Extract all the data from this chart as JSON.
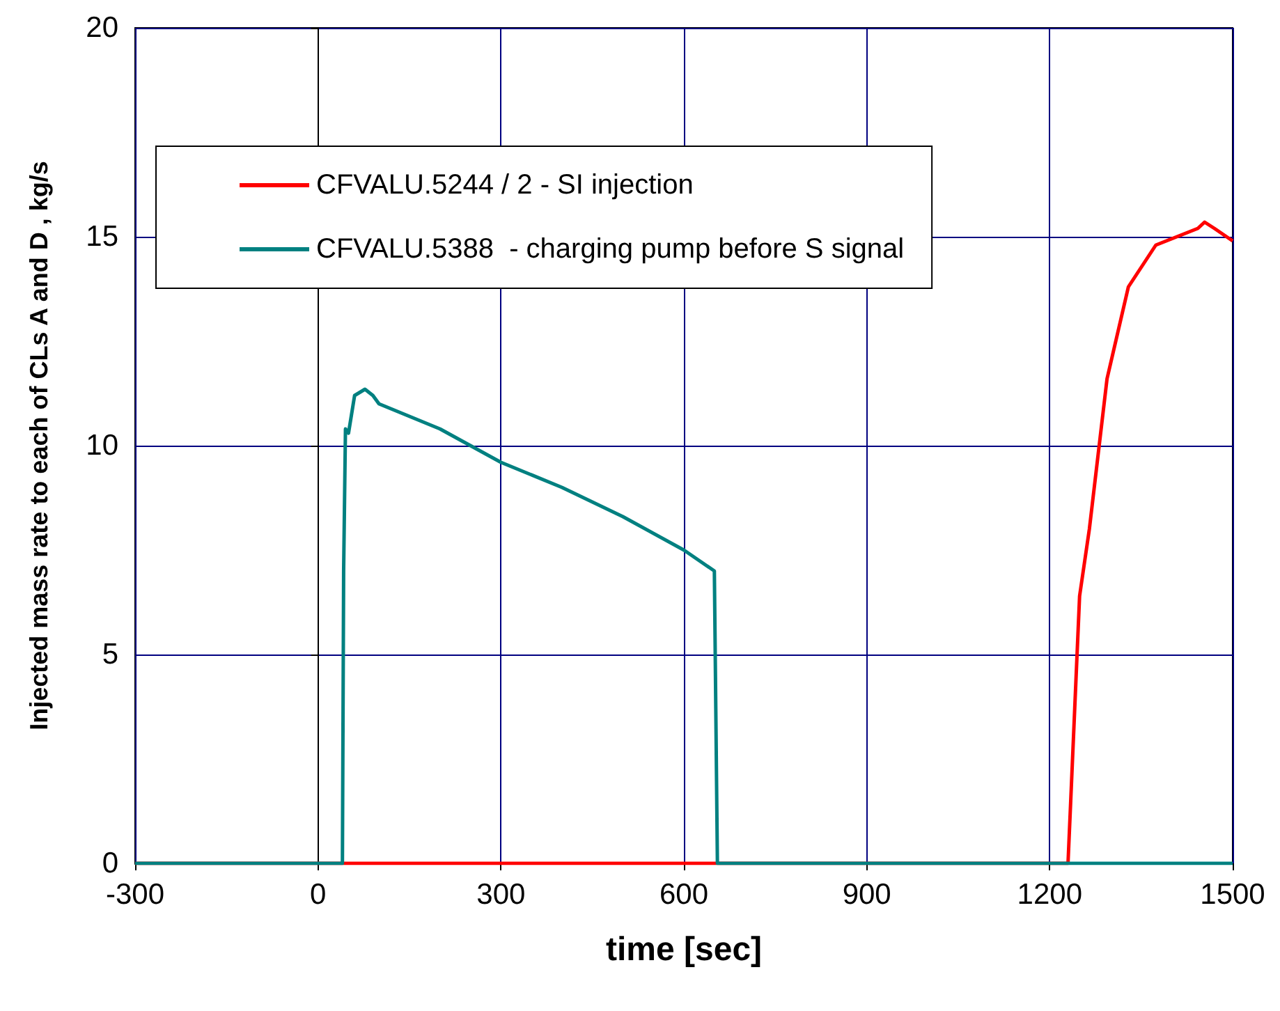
{
  "chart_data": {
    "type": "line",
    "xlabel": "time [sec]",
    "ylabel": "Injected mass rate to each of CLs A and D , kg/s",
    "xlim": [
      -300,
      1500
    ],
    "xticks": [
      -300,
      0,
      300,
      600,
      900,
      1200,
      1500
    ],
    "ylim": [
      0,
      20
    ],
    "yticks": [
      0,
      5,
      10,
      15,
      20
    ],
    "grid": true,
    "legend": "top left",
    "marker": "none",
    "line_style": "solid",
    "series": [
      {
        "name": "CFVALU.5244 / 2 - SI injection",
        "color": "#ff0000",
        "x": [
          -300,
          1230,
          1249,
          1265,
          1294,
          1329,
          1374,
          1443,
          1454,
          1470,
          1500
        ],
        "values": [
          0,
          0,
          6.4,
          8,
          11.6,
          13.8,
          14.8,
          15.2,
          15.35,
          15.2,
          14.9
        ]
      },
      {
        "name": "CFVALU.5388  - charging pump before S signal",
        "color": "#008080",
        "x": [
          -300,
          40,
          42,
          45,
          50,
          60,
          77,
          90,
          100,
          200,
          300,
          400,
          500,
          600,
          650,
          655,
          1500
        ],
        "values": [
          0,
          0,
          7,
          10.4,
          10.3,
          11.2,
          11.35,
          11.2,
          11.0,
          10.4,
          9.6,
          9.0,
          8.3,
          7.5,
          7.0,
          0,
          0
        ]
      }
    ]
  }
}
